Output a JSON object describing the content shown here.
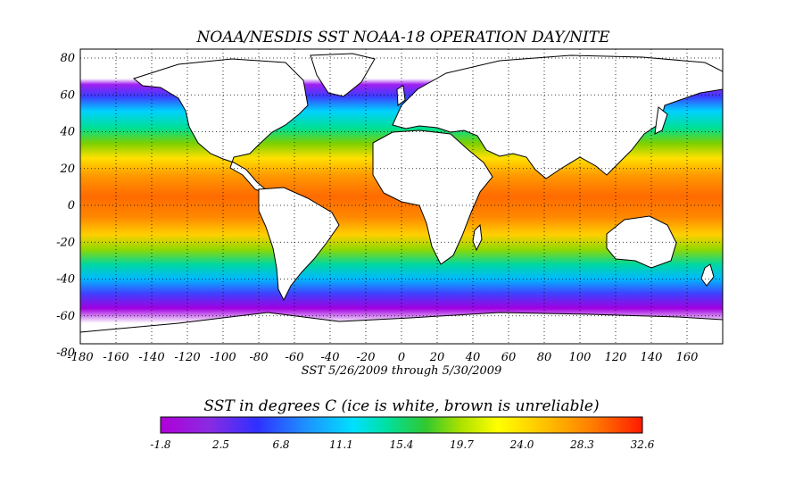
{
  "map": {
    "title": "NOAA/NESDIS SST NOAA-18 OPERATION DAY/NITE",
    "date_range": "SST  5/26/2009 through 5/30/2009",
    "lon_ticks": [
      "-180",
      "-160",
      "-140",
      "-120",
      "-100",
      "-80",
      "-60",
      "-40",
      "-20",
      "0",
      "20",
      "40",
      "60",
      "80",
      "100",
      "120",
      "140",
      "160"
    ],
    "lat_ticks": [
      "80",
      "60",
      "40",
      "20",
      "0",
      "-20",
      "-40",
      "-60",
      "-80"
    ],
    "lon_range": [
      -180,
      180
    ],
    "lat_range": [
      -80,
      80
    ]
  },
  "colorbar": {
    "title": "SST in degrees C (ice is white, brown is unreliable)",
    "ticks": [
      "-1.8",
      "2.5",
      "6.8",
      "11.1",
      "15.4",
      "19.7",
      "24.0",
      "28.3",
      "32.6"
    ],
    "range": [
      -1.8,
      32.6
    ],
    "colors": [
      "#8b00c8",
      "#8a2be2",
      "#3c2cff",
      "#1e90ff",
      "#00d8ff",
      "#00e0a0",
      "#2ec82e",
      "#a0e000",
      "#ffff00",
      "#ffc800",
      "#ff8c00",
      "#ff4500",
      "#ff1a00"
    ]
  }
}
